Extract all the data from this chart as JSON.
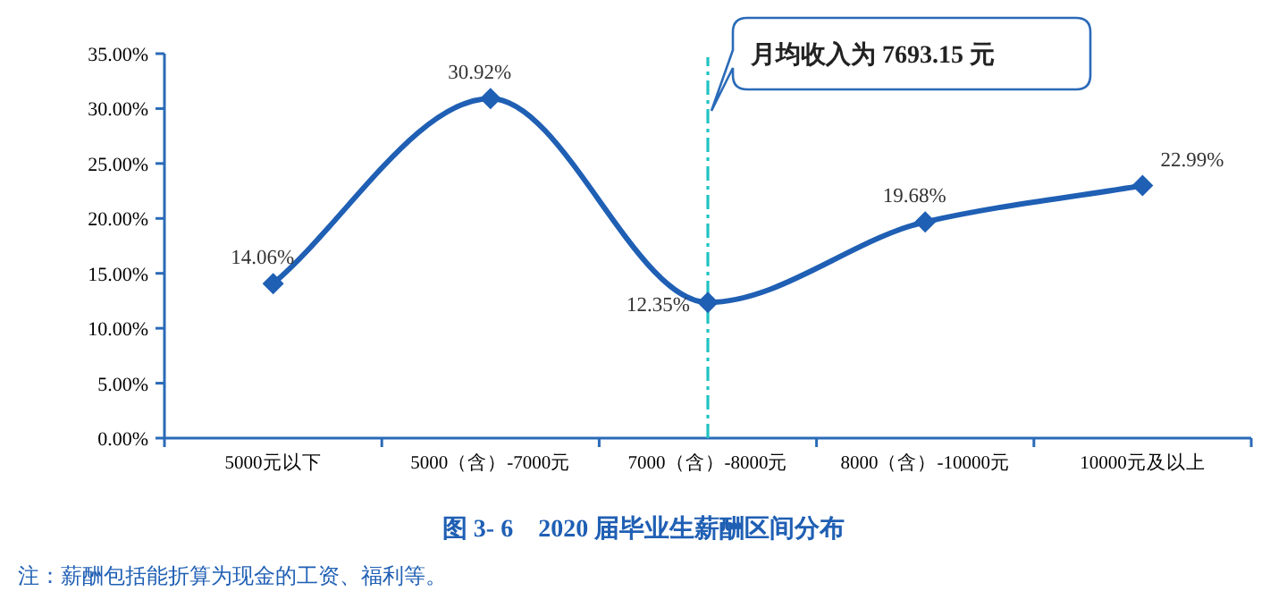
{
  "chart_data": {
    "type": "line",
    "title": "图 3- 6　2020 届毕业生薪酬区间分布",
    "annotations": [
      "注：薪酬包括能折算为现金的工资、福利等。"
    ],
    "categories": [
      "5000元以下",
      "5000（含）-7000元",
      "7000（含）-8000元",
      "8000（含）-10000元",
      "10000元及以上"
    ],
    "series": [
      {
        "color": "#1f5fb4",
        "values": [
          14.06,
          30.92,
          12.35,
          19.68,
          22.99
        ],
        "value_labels": [
          "14.06%",
          "30.92%",
          "12.35%",
          "19.68%",
          "22.99%"
        ]
      }
    ],
    "ylim": [
      0,
      35
    ],
    "yticks": [
      {
        "value": 0,
        "label": "0.00%"
      },
      {
        "value": 5,
        "label": "5.00%"
      },
      {
        "value": 10,
        "label": "10.00%"
      },
      {
        "value": 15,
        "label": "15.00%"
      },
      {
        "value": 20,
        "label": "20.00%"
      },
      {
        "value": 25,
        "label": "25.00%"
      },
      {
        "value": 30,
        "label": "30.00%"
      },
      {
        "value": 35,
        "label": "35.00%"
      }
    ],
    "ref_lines": [
      {
        "axis": "x",
        "value": "7000（含）-8000元",
        "label": "月均收入为 7693.15 元",
        "color": "#1fc3c3",
        "line_style": "dashdot"
      }
    ],
    "marker": "diamond",
    "grid": false
  }
}
